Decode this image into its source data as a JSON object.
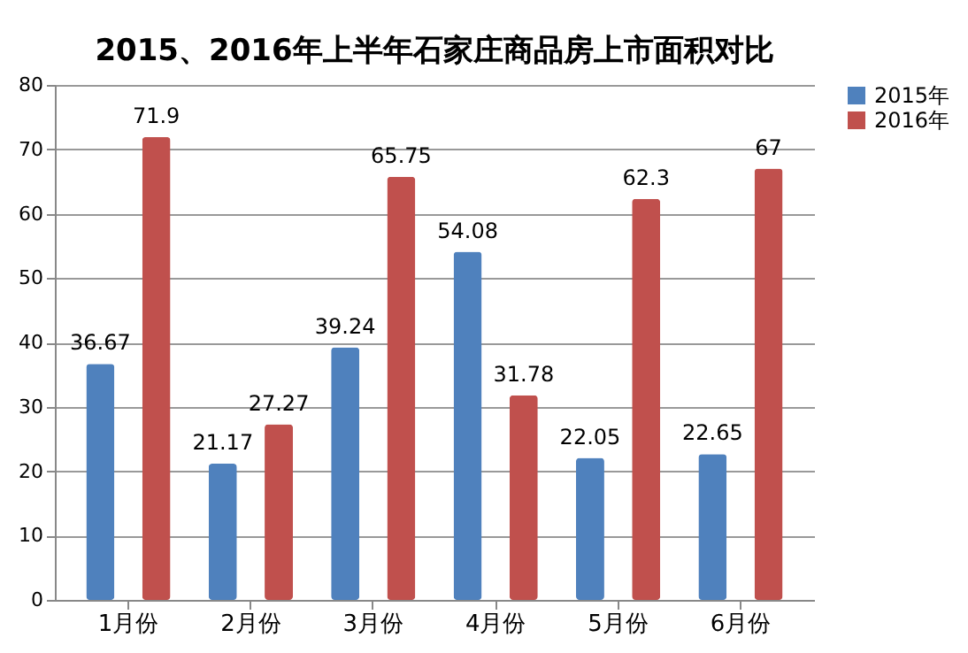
{
  "chart_data": {
    "type": "bar",
    "title": "2015、2016年上半年石家庄商品房上市面积对比",
    "categories": [
      "1月份",
      "2月份",
      "3月份",
      "4月份",
      "5月份",
      "6月份"
    ],
    "series": [
      {
        "name": "2015年",
        "color": "#4f81bd",
        "values": [
          36.67,
          21.17,
          39.24,
          54.08,
          22.05,
          22.65
        ]
      },
      {
        "name": "2016年",
        "color": "#c0504d",
        "values": [
          71.9,
          27.27,
          65.75,
          31.78,
          62.3,
          67
        ]
      }
    ],
    "ylim": [
      0,
      80
    ],
    "yticks": [
      0,
      10,
      20,
      30,
      40,
      50,
      60,
      70,
      80
    ],
    "grid": "y",
    "legend": "right",
    "data_labels": true
  }
}
